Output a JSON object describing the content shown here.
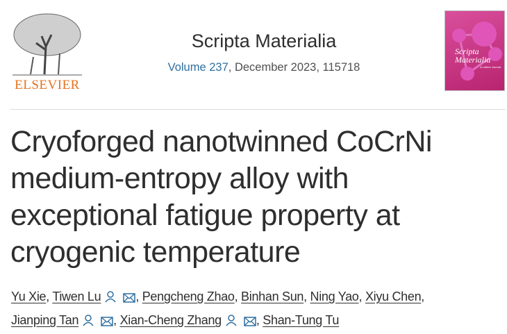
{
  "publisher": {
    "logo_text": "ELSEVIER"
  },
  "journal": {
    "title": "Scripta Materialia",
    "volume_link": "Volume 237",
    "volume_rest": ", December 2023, 115718",
    "cover_title": "Scripta Materialia",
    "cover_subtitle": "A Letters Journal"
  },
  "article": {
    "title": "Cryoforged nanotwinned CoCrNi medium-entropy alloy with exceptional fatigue property at cryogenic temperature"
  },
  "authors": [
    {
      "name": "Yu Xie",
      "icons": false
    },
    {
      "name": "Tiwen Lu",
      "icons": true
    },
    {
      "name": "Pengcheng Zhao",
      "icons": false
    },
    {
      "name": "Binhan Sun",
      "icons": false
    },
    {
      "name": "Ning Yao",
      "icons": false
    },
    {
      "name": "Xiyu Chen",
      "icons": false
    },
    {
      "name": "Jianping Tan",
      "icons": true
    },
    {
      "name": "Xian-Cheng Zhang",
      "icons": true
    },
    {
      "name": "Shan-Tung Tu",
      "icons": false
    }
  ],
  "colors": {
    "accent": "#2e6fa0",
    "elsevier_orange": "#e9711c"
  }
}
